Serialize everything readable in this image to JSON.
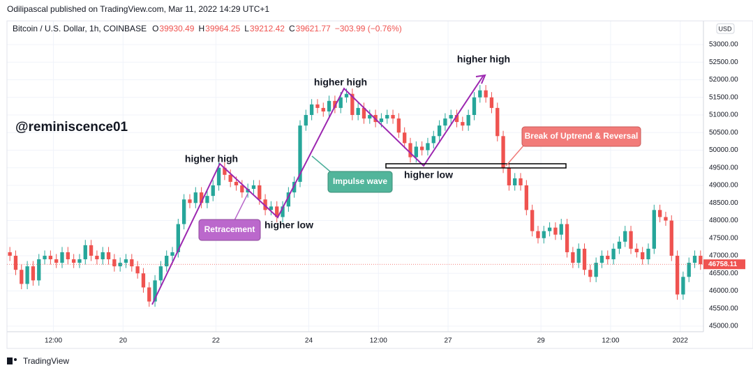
{
  "chart_data": {
    "type": "candlestick",
    "header": "Odilipascal published on TradingView.com, Mar 11, 2022 14:29 UTC+1",
    "title": "Bitcoin / U.S. Dollar, 1h, COINBASE",
    "ohlc_text": [
      "O",
      "39930.49",
      "H",
      "39964.25",
      "L",
      "39212.42",
      "C",
      "39621.77",
      "−303.99 (−0.76%)"
    ],
    "currency": "USD",
    "watermark": "@reminiscence01",
    "source_label": "TradingView",
    "annotations": [
      "higher high",
      "higher high",
      "higher high",
      "higher low",
      "higher low",
      "Retracement",
      "Impulse wave",
      "Break of Uptrend & Reversal"
    ],
    "up_color": "#26a69a",
    "down_color": "#ef5350",
    "xlim": [
      0,
      120
    ],
    "xticks": [
      {
        "value": 8,
        "label": "12:00"
      },
      {
        "value": 20,
        "label": "20"
      },
      {
        "value": 36,
        "label": "22"
      },
      {
        "value": 52,
        "label": "24"
      },
      {
        "value": 64,
        "label": "12:00"
      },
      {
        "value": 76,
        "label": "27"
      },
      {
        "value": 92,
        "label": "29"
      },
      {
        "value": 104,
        "label": "12:00"
      },
      {
        "value": 116,
        "label": "2022"
      }
    ],
    "ylim": [
      44842,
      53673
    ],
    "yticks": [
      {
        "value": 45000,
        "label": "45000.00"
      },
      {
        "value": 45500,
        "label": "45500.00"
      },
      {
        "value": 46000,
        "label": "46000.00"
      },
      {
        "value": 46500,
        "label": "46500.00"
      },
      {
        "value": 47000,
        "label": "47000.00"
      },
      {
        "value": 47500,
        "label": "47500.00"
      },
      {
        "value": 48000,
        "label": "48000.00"
      },
      {
        "value": 48500,
        "label": "48500.00"
      },
      {
        "value": 49000,
        "label": "49000.00"
      },
      {
        "value": 49500,
        "label": "49500.00"
      },
      {
        "value": 50000,
        "label": "50000.00"
      },
      {
        "value": 50500,
        "label": "50500.00"
      },
      {
        "value": 51000,
        "label": "51000.00"
      },
      {
        "value": 51500,
        "label": "51500.00"
      },
      {
        "value": 52000,
        "label": "52000.00"
      },
      {
        "value": 52500,
        "label": "52500.00"
      },
      {
        "value": 53000,
        "label": "53000.00"
      }
    ],
    "open": [
      47100,
      47000,
      46600,
      46200,
      46700,
      46300,
      46900,
      47000,
      46900,
      46800,
      47100,
      46900,
      46800,
      46900,
      47300,
      47000,
      46900,
      47100,
      46900,
      46700,
      46800,
      46900,
      46700,
      46500,
      46100,
      45700,
      46300,
      46700,
      47000,
      47100,
      47900,
      48600,
      48500,
      48800,
      48500,
      48700,
      49000,
      49500,
      49300,
      49100,
      49000,
      48800,
      48900,
      49000,
      48600,
      48300,
      48400,
      48100,
      48400,
      48800,
      49100,
      50700,
      51000,
      51300,
      51200,
      51100,
      51400,
      51200,
      51500,
      51600,
      51000,
      51200,
      50900,
      51000,
      50800,
      50900,
      51000,
      50900,
      50500,
      50200,
      49800,
      50100,
      50000,
      50200,
      50400,
      50700,
      50900,
      51000,
      50800,
      50700,
      51000,
      51500,
      51700,
      51500,
      51200,
      50400,
      49500,
      49000,
      49200,
      49000,
      48300,
      47700,
      47500,
      47700,
      47800,
      47600,
      47900,
      47100,
      46800,
      47200,
      46600,
      46400,
      46800,
      47000,
      46900,
      47200,
      47400,
      47700,
      47200,
      47100,
      46900,
      47200,
      48300,
      48100,
      48000,
      47000,
      45900,
      46400,
      46800,
      47000
    ],
    "high": [
      47250,
      47150,
      46750,
      46850,
      46850,
      47050,
      47150,
      47150,
      47050,
      47250,
      47250,
      47050,
      47050,
      47450,
      47450,
      47150,
      47250,
      47250,
      47050,
      46950,
      47050,
      47050,
      46850,
      46650,
      46250,
      46450,
      46850,
      47150,
      47250,
      48050,
      48750,
      48750,
      48950,
      48950,
      48850,
      49150,
      49650,
      49650,
      49450,
      49250,
      49150,
      49050,
      49150,
      49150,
      48750,
      48550,
      48550,
      48550,
      48950,
      49250,
      50850,
      51150,
      51450,
      51450,
      51350,
      51550,
      51550,
      51650,
      51750,
      51750,
      51350,
      51350,
      51150,
      51150,
      51050,
      51150,
      51150,
      51050,
      50650,
      50350,
      50250,
      50250,
      50350,
      50550,
      50850,
      51050,
      51150,
      51150,
      50950,
      51150,
      51650,
      51850,
      51850,
      51650,
      51350,
      50550,
      49650,
      49350,
      49350,
      49150,
      48450,
      47850,
      47850,
      47950,
      47950,
      48050,
      48050,
      47250,
      47350,
      47350,
      46750,
      46950,
      47150,
      47150,
      47350,
      47550,
      47850,
      47850,
      47350,
      47250,
      47350,
      48450,
      48450,
      48250,
      48150,
      47150,
      46550,
      46950,
      47150,
      47150
    ],
    "low": [
      46850,
      46450,
      46050,
      46050,
      46150,
      46150,
      46750,
      46750,
      46650,
      46650,
      46750,
      46650,
      46650,
      46750,
      46850,
      46750,
      46750,
      46750,
      46550,
      46550,
      46650,
      46550,
      46350,
      45950,
      45550,
      45550,
      46150,
      46550,
      46850,
      46950,
      47750,
      48350,
      48350,
      48350,
      48350,
      48550,
      48850,
      49150,
      48950,
      48850,
      48650,
      48650,
      48750,
      48450,
      48150,
      48150,
      47950,
      47950,
      48250,
      48650,
      48950,
      50550,
      50850,
      51050,
      50950,
      50950,
      51050,
      51050,
      51350,
      50850,
      50850,
      50750,
      50750,
      50650,
      50650,
      50750,
      50750,
      50350,
      50050,
      49650,
      49650,
      49850,
      49850,
      50050,
      50250,
      50550,
      50750,
      50650,
      50550,
      50550,
      50850,
      51350,
      51350,
      51050,
      50250,
      49350,
      48850,
      48850,
      48850,
      48150,
      47550,
      47350,
      47350,
      47550,
      47450,
      47450,
      46950,
      46650,
      46650,
      46450,
      46250,
      46250,
      46650,
      46750,
      46750,
      47050,
      47250,
      47050,
      46950,
      46750,
      46750,
      47050,
      47950,
      47850,
      46850,
      45750,
      45750,
      46250,
      46650,
      46600
    ],
    "close": [
      47000,
      46600,
      46200,
      46700,
      46300,
      46900,
      47000,
      46900,
      46800,
      47100,
      46900,
      46800,
      46900,
      47300,
      47000,
      46900,
      47100,
      46900,
      46700,
      46800,
      46900,
      46700,
      46500,
      46100,
      45700,
      46300,
      46700,
      47000,
      47100,
      47900,
      48600,
      48500,
      48800,
      48500,
      48700,
      49000,
      49500,
      49300,
      49100,
      49000,
      48800,
      48900,
      49000,
      48600,
      48300,
      48400,
      48100,
      48400,
      48800,
      49100,
      50700,
      51000,
      51300,
      51200,
      51100,
      51400,
      51200,
      51500,
      51600,
      51000,
      51200,
      50900,
      51000,
      50800,
      50900,
      51000,
      50900,
      50500,
      50200,
      49800,
      50100,
      50000,
      50200,
      50400,
      50700,
      50900,
      51000,
      50800,
      50700,
      51000,
      51500,
      51700,
      51500,
      51200,
      50400,
      49500,
      49000,
      49200,
      49000,
      48300,
      47700,
      47500,
      47700,
      47800,
      47600,
      47900,
      47100,
      46800,
      47200,
      46600,
      46400,
      46800,
      47000,
      46900,
      47200,
      47400,
      47700,
      47200,
      47100,
      46900,
      47200,
      48300,
      48100,
      48000,
      47000,
      45900,
      46400,
      46800,
      47000,
      46758.11
    ]
  }
}
